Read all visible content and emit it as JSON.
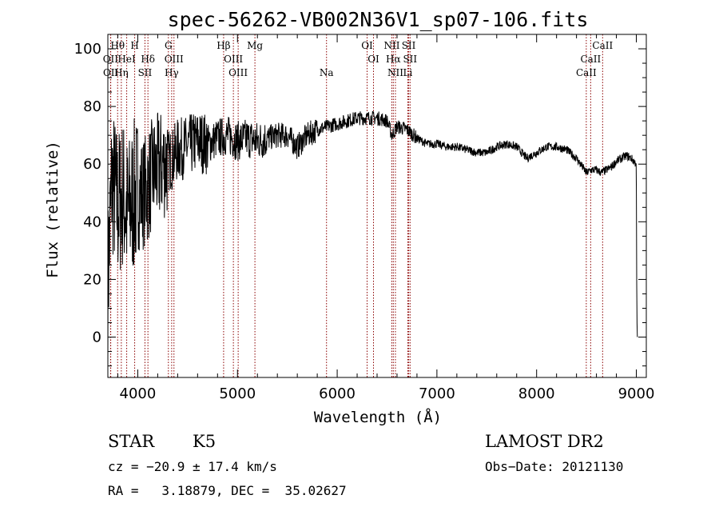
{
  "chart_data": {
    "type": "line",
    "title": "spec-56262-VB002N36V1_sp07-106.fits",
    "xlabel": "Wavelength (Å)",
    "ylabel": "Flux (relative)",
    "xlim": [
      3700,
      9100
    ],
    "ylim": [
      -14,
      105
    ],
    "x_ticks": [
      4000,
      5000,
      6000,
      7000,
      8000,
      9000
    ],
    "y_ticks": [
      0,
      20,
      40,
      60,
      80,
      100
    ],
    "grid": false,
    "line_color": "#000000",
    "marker_color": "#8b0000",
    "spectrum_anchors": [
      [
        3700,
        18
      ],
      [
        3740,
        55
      ],
      [
        3800,
        45
      ],
      [
        3850,
        50
      ],
      [
        3900,
        42
      ],
      [
        3950,
        48
      ],
      [
        4000,
        50
      ],
      [
        4050,
        50
      ],
      [
        4100,
        52
      ],
      [
        4150,
        57
      ],
      [
        4200,
        58
      ],
      [
        4250,
        60
      ],
      [
        4300,
        61
      ],
      [
        4350,
        62
      ],
      [
        4400,
        65
      ],
      [
        4500,
        66
      ],
      [
        4600,
        68
      ],
      [
        4700,
        67
      ],
      [
        4800,
        69
      ],
      [
        4900,
        70
      ],
      [
        5000,
        68
      ],
      [
        5100,
        69
      ],
      [
        5200,
        68
      ],
      [
        5300,
        69
      ],
      [
        5400,
        70
      ],
      [
        5500,
        70
      ],
      [
        5600,
        66
      ],
      [
        5700,
        70
      ],
      [
        5800,
        72
      ],
      [
        5900,
        73
      ],
      [
        6000,
        74
      ],
      [
        6100,
        75
      ],
      [
        6200,
        76
      ],
      [
        6300,
        76
      ],
      [
        6400,
        76
      ],
      [
        6500,
        75
      ],
      [
        6550,
        70
      ],
      [
        6600,
        73
      ],
      [
        6700,
        72
      ],
      [
        6800,
        69
      ],
      [
        6900,
        67
      ],
      [
        7000,
        67
      ],
      [
        7100,
        66
      ],
      [
        7200,
        66
      ],
      [
        7300,
        65
      ],
      [
        7400,
        64
      ],
      [
        7500,
        64
      ],
      [
        7600,
        66
      ],
      [
        7700,
        67
      ],
      [
        7800,
        66
      ],
      [
        7900,
        62
      ],
      [
        8000,
        64
      ],
      [
        8100,
        66
      ],
      [
        8200,
        66
      ],
      [
        8300,
        65
      ],
      [
        8400,
        62
      ],
      [
        8500,
        57
      ],
      [
        8550,
        58
      ],
      [
        8600,
        58
      ],
      [
        8650,
        57
      ],
      [
        8700,
        58
      ],
      [
        8750,
        59
      ],
      [
        8800,
        61
      ],
      [
        8850,
        62
      ],
      [
        8900,
        63
      ],
      [
        8950,
        62
      ],
      [
        9000,
        60
      ],
      [
        9005,
        8
      ],
      [
        9010,
        0
      ]
    ],
    "lines": [
      {
        "label": "Hθ",
        "wavelength": 3798,
        "row": 0
      },
      {
        "label": "H",
        "wavelength": 3969,
        "row": 0
      },
      {
        "label": "G",
        "wavelength": 4307,
        "row": 0
      },
      {
        "label": "Hβ",
        "wavelength": 4861,
        "row": 0
      },
      {
        "label": "Mg",
        "wavelength": 5175,
        "row": 0
      },
      {
        "label": "OI",
        "wavelength": 6300,
        "row": 0
      },
      {
        "label": "NII",
        "wavelength": 6548,
        "row": 0
      },
      {
        "label": "SII",
        "wavelength": 6717,
        "row": 0
      },
      {
        "label": "CaII",
        "wavelength": 8662,
        "row": 0
      },
      {
        "label": "OII",
        "wavelength": 3727,
        "row": 1
      },
      {
        "label": "HeI",
        "wavelength": 3889,
        "row": 1
      },
      {
        "label": "Hδ",
        "wavelength": 4102,
        "row": 1
      },
      {
        "label": "OIII",
        "wavelength": 4363,
        "row": 1
      },
      {
        "label": "OIII",
        "wavelength": 4959,
        "row": 1
      },
      {
        "label": "OI",
        "wavelength": 6364,
        "row": 1
      },
      {
        "label": "Hα",
        "wavelength": 6563,
        "row": 1
      },
      {
        "label": "SII",
        "wavelength": 6731,
        "row": 1
      },
      {
        "label": "CaII",
        "wavelength": 8542,
        "row": 1
      },
      {
        "label": "OII",
        "wavelength": 3729,
        "row": 2
      },
      {
        "label": "Hη",
        "wavelength": 3835,
        "row": 2
      },
      {
        "label": "SII",
        "wavelength": 4072,
        "row": 2
      },
      {
        "label": "Hγ",
        "wavelength": 4340,
        "row": 2
      },
      {
        "label": "OIII",
        "wavelength": 5007,
        "row": 2
      },
      {
        "label": "Na",
        "wavelength": 5893,
        "row": 2
      },
      {
        "label": "NII",
        "wavelength": 6584,
        "row": 2
      },
      {
        "label": "Li",
        "wavelength": 6708,
        "row": 2
      },
      {
        "label": "CaII",
        "wavelength": 8498,
        "row": 2
      }
    ]
  },
  "info": {
    "class": "STAR",
    "subclass": "K5",
    "survey": "LAMOST DR2",
    "cz": "cz = −20.9 ± 17.4 km/s",
    "obs_date": "Obs−Date: 20121130",
    "radec": "RA =   3.18879, DEC =  35.02627"
  }
}
